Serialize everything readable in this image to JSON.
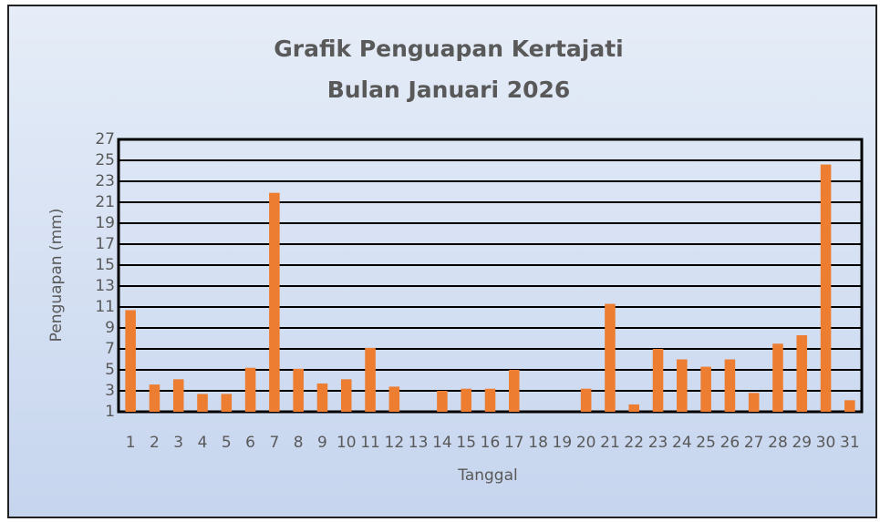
{
  "chart_data": {
    "type": "bar",
    "title": "Grafik  Penguapan Kertajati",
    "subtitle": "Bulan Januari 2026",
    "xlabel": "Tanggal",
    "ylabel": "Penguapan (mm)",
    "categories": [
      "1",
      "2",
      "3",
      "4",
      "5",
      "6",
      "7",
      "8",
      "9",
      "10",
      "11",
      "12",
      "13",
      "14",
      "15",
      "16",
      "17",
      "18",
      "19",
      "20",
      "21",
      "22",
      "23",
      "24",
      "25",
      "26",
      "27",
      "28",
      "29",
      "30",
      "31"
    ],
    "values": [
      10.7,
      3.6,
      4.1,
      2.7,
      2.7,
      5.2,
      21.9,
      5.1,
      3.7,
      4.1,
      7.1,
      3.4,
      null,
      3.0,
      3.2,
      3.2,
      5.0,
      null,
      null,
      3.2,
      11.3,
      1.7,
      7.0,
      6.0,
      5.3,
      6.0,
      2.8,
      7.5,
      8.3,
      24.6,
      2.1
    ],
    "color": "#ed7d31",
    "ylim": [
      1,
      27
    ],
    "yticks": [
      1,
      3,
      5,
      7,
      9,
      11,
      13,
      15,
      17,
      19,
      21,
      23,
      25,
      27
    ],
    "grid": true
  }
}
